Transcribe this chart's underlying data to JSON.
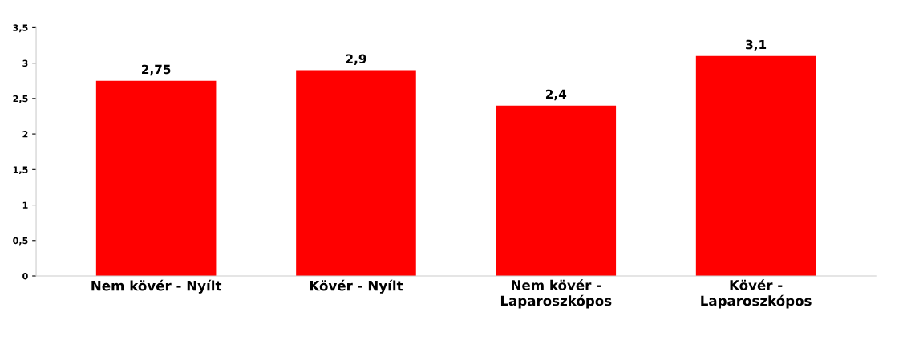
{
  "chart_data": {
    "type": "bar",
    "categories": [
      "Nem kövér - Nyílt",
      "Kövér - Nyílt",
      "Nem kövér -\nLaparoszkópos",
      "Kövér -\nLaparoszkópos"
    ],
    "values": [
      2.75,
      2.9,
      2.4,
      3.1
    ],
    "value_labels": [
      "2,75",
      "2,9",
      "2,4",
      "3,1"
    ],
    "color": "#ff0000",
    "ylim": [
      0,
      3.5
    ],
    "yticks": [
      0,
      {
        "value": 0.5,
        "label": "0,5"
      },
      1,
      {
        "value": 1.5,
        "label": "1,5"
      },
      2,
      {
        "value": 2.5,
        "label": "2,5"
      },
      3,
      {
        "value": 3.5,
        "label": "3,5"
      }
    ],
    "grid": false
  }
}
